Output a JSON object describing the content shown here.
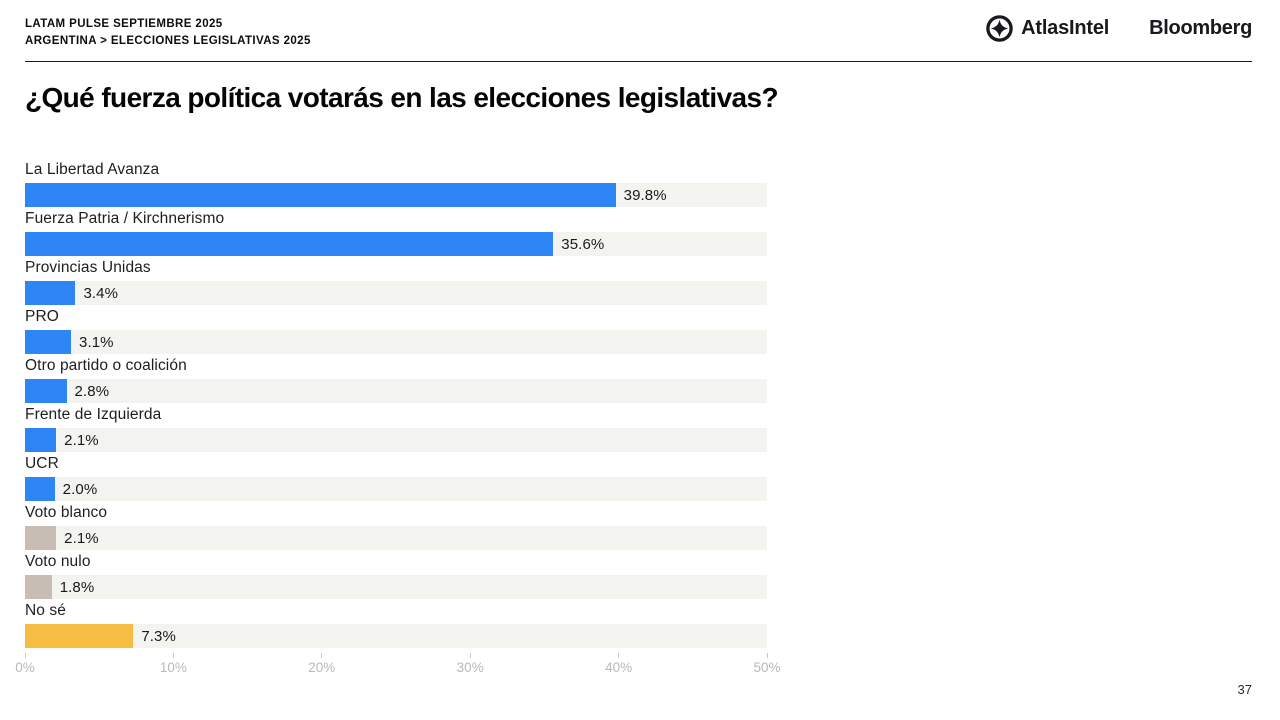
{
  "header": {
    "line1": "LATAM PULSE SEPTIEMBRE 2025",
    "line2": "ARGENTINA > ELECCIONES LEGISLATIVAS 2025",
    "atlasintel_text": "AtlasIntel",
    "bloomberg_text": "Bloomberg"
  },
  "title": "¿Qué fuerza política votarás en las elecciones legislativas?",
  "page_number": "37",
  "colors": {
    "primary_blue": "#2E86F6",
    "neutral_tan": "#C7BDB5",
    "accent_yellow": "#F5BE42",
    "track_background": "#F3F3EF"
  },
  "chart_data": {
    "type": "bar",
    "orientation": "horizontal",
    "title": "¿Qué fuerza política votarás en las elecciones legislativas?",
    "categories": [
      "La Libertad Avanza",
      "Fuerza Patria / Kirchnerismo",
      "Provincias Unidas",
      "PRO",
      "Otro partido o coalición",
      "Frente de Izquierda",
      "UCR",
      "Voto blanco",
      "Voto nulo",
      "No sé"
    ],
    "values": [
      39.8,
      35.6,
      3.4,
      3.1,
      2.8,
      2.1,
      2.0,
      2.1,
      1.8,
      7.3
    ],
    "value_labels": [
      "39.8%",
      "35.6%",
      "3.4%",
      "3.1%",
      "2.8%",
      "2.1%",
      "2.0%",
      "2.1%",
      "1.8%",
      "7.3%"
    ],
    "bar_colors": [
      "#2E86F6",
      "#2E86F6",
      "#2E86F6",
      "#2E86F6",
      "#2E86F6",
      "#2E86F6",
      "#2E86F6",
      "#C7BDB5",
      "#C7BDB5",
      "#F5BE42"
    ],
    "xlim": [
      0,
      50
    ],
    "x_ticks": [
      "0%",
      "10%",
      "20%",
      "30%",
      "40%",
      "50%"
    ],
    "grid": false,
    "legend": false
  }
}
